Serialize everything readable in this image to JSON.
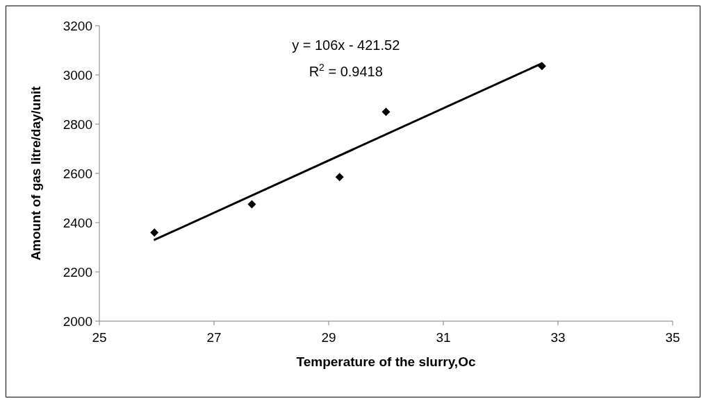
{
  "chart_data": {
    "type": "scatter",
    "xlabel": "Temperature of the slurry,Oc",
    "ylabel": "Amount of gas litre/day/unit",
    "series": [
      {
        "color": "#000000",
        "marker": "diamond",
        "x": [
          25.96,
          27.66,
          29.19,
          30.0,
          32.72
        ],
        "values": [
          2360,
          2475,
          2585,
          2850,
          3036
        ]
      },
      {
        "type": "line",
        "color": "#000000",
        "marker": "none",
        "line_style": "solid",
        "x": [
          25.95,
          32.72
        ],
        "values": [
          2329,
          3047
        ]
      }
    ],
    "annotations": [
      "y = 106x - 421.52",
      "R$^{2}$ = 0.9418"
    ],
    "xlim": [
      25,
      35
    ],
    "xticks": [
      25,
      27,
      29,
      31,
      33,
      35
    ],
    "ylim": [
      2000,
      3200
    ],
    "yticks": [
      2000,
      2200,
      2400,
      2600,
      2800,
      3000,
      3200
    ],
    "grid": false
  }
}
